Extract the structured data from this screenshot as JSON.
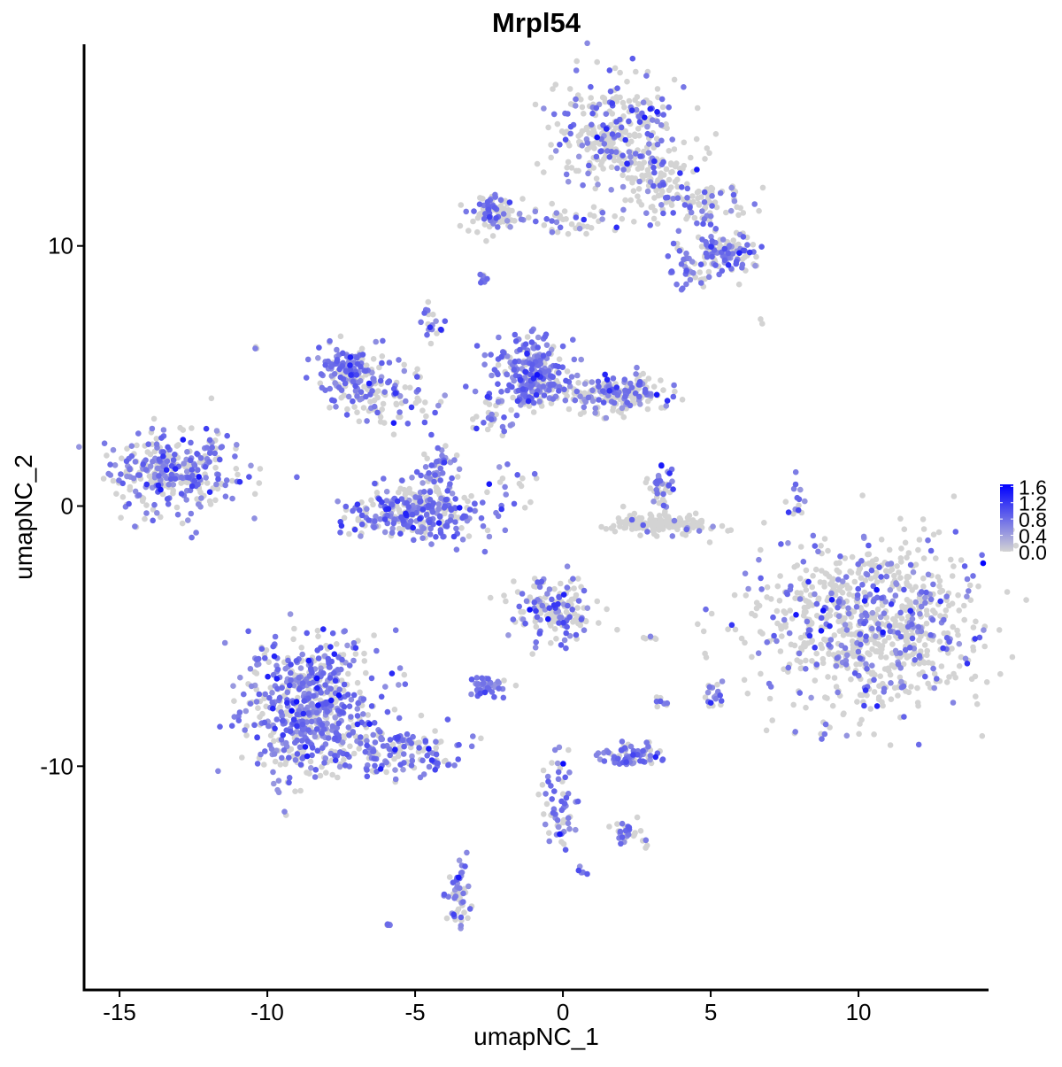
{
  "chart_data": {
    "type": "scatter",
    "title": "Mrpl54",
    "xlabel": "umapNC_1",
    "ylabel": "umapNC_2",
    "xlim": [
      -16.2,
      14.4
    ],
    "ylim": [
      -18.6,
      17.75
    ],
    "xticks": [
      -15,
      -10,
      -5,
      0,
      5,
      10
    ],
    "yticks": [
      -10,
      0,
      10
    ],
    "grid": false,
    "legend": {
      "position": "right",
      "type": "colorbar",
      "ticks": [
        "1.6",
        "1.2",
        "0.8",
        "0.4",
        "0.0"
      ],
      "range": [
        0,
        1.65
      ]
    },
    "colors": {
      "low": "#d3d3d3",
      "high": "#0000ff"
    },
    "clusters": [
      {
        "x": 1.9,
        "y": 14.3,
        "sx": 1.1,
        "sy": 1.0,
        "n": 320,
        "frac_expr": 0.35
      },
      {
        "x": 3.2,
        "y": 12.5,
        "sx": 0.8,
        "sy": 0.6,
        "n": 90,
        "frac_expr": 0.2
      },
      {
        "x": 4.9,
        "y": 11.6,
        "sx": 0.6,
        "sy": 0.4,
        "n": 70,
        "frac_expr": 0.4
      },
      {
        "x": 5.5,
        "y": 9.7,
        "sx": 0.5,
        "sy": 0.45,
        "n": 110,
        "frac_expr": 0.55
      },
      {
        "x": 4.3,
        "y": 9.2,
        "sx": 0.4,
        "sy": 0.4,
        "n": 40,
        "frac_expr": 0.6
      },
      {
        "x": -2.4,
        "y": 11.3,
        "sx": 0.5,
        "sy": 0.4,
        "n": 90,
        "frac_expr": 0.35
      },
      {
        "x": 0.3,
        "y": 11.0,
        "sx": 1.1,
        "sy": 0.3,
        "n": 50,
        "frac_expr": 0.3
      },
      {
        "x": -13.2,
        "y": 1.2,
        "sx": 1.1,
        "sy": 0.75,
        "n": 320,
        "frac_expr": 0.6
      },
      {
        "x": -11.7,
        "y": 2.4,
        "sx": 0.2,
        "sy": 0.3,
        "n": 12,
        "frac_expr": 0.3
      },
      {
        "x": -7.2,
        "y": 5.1,
        "sx": 0.6,
        "sy": 0.5,
        "n": 160,
        "frac_expr": 0.7
      },
      {
        "x": -5.8,
        "y": 4.2,
        "sx": 0.9,
        "sy": 0.5,
        "n": 80,
        "frac_expr": 0.4
      },
      {
        "x": -5.0,
        "y": -0.2,
        "sx": 1.2,
        "sy": 0.55,
        "n": 320,
        "frac_expr": 0.65
      },
      {
        "x": -4.2,
        "y": 1.4,
        "sx": 0.3,
        "sy": 0.6,
        "n": 50,
        "frac_expr": 0.7
      },
      {
        "x": -4.4,
        "y": 7.0,
        "sx": 0.2,
        "sy": 0.4,
        "n": 20,
        "frac_expr": 0.6
      },
      {
        "x": -1.1,
        "y": 5.0,
        "sx": 0.6,
        "sy": 0.7,
        "n": 260,
        "frac_expr": 0.7
      },
      {
        "x": 1.7,
        "y": 4.3,
        "sx": 0.9,
        "sy": 0.4,
        "n": 200,
        "frac_expr": 0.35
      },
      {
        "x": -2.3,
        "y": 3.2,
        "sx": 0.3,
        "sy": 0.6,
        "n": 25,
        "frac_expr": 0.6
      },
      {
        "x": -1.7,
        "y": 1.0,
        "sx": 0.5,
        "sy": 0.3,
        "n": 12,
        "frac_expr": 0.6
      },
      {
        "x": 3.3,
        "y": 0.7,
        "sx": 0.2,
        "sy": 0.4,
        "n": 40,
        "frac_expr": 0.6
      },
      {
        "x": 3.4,
        "y": -0.7,
        "sx": 0.9,
        "sy": 0.2,
        "n": 170,
        "frac_expr": 0.03
      },
      {
        "x": 10.4,
        "y": -4.5,
        "sx": 1.9,
        "sy": 1.6,
        "n": 850,
        "frac_expr": 0.3
      },
      {
        "x": -8.6,
        "y": -7.8,
        "sx": 1.1,
        "sy": 1.3,
        "n": 620,
        "frac_expr": 0.65
      },
      {
        "x": -5.6,
        "y": -9.4,
        "sx": 1.2,
        "sy": 0.5,
        "n": 150,
        "frac_expr": 0.6
      },
      {
        "x": -0.3,
        "y": -3.9,
        "sx": 0.7,
        "sy": 0.6,
        "n": 160,
        "frac_expr": 0.45
      },
      {
        "x": -2.6,
        "y": -6.9,
        "sx": 0.3,
        "sy": 0.2,
        "n": 40,
        "frac_expr": 0.8
      },
      {
        "x": 2.4,
        "y": -9.6,
        "sx": 0.5,
        "sy": 0.2,
        "n": 70,
        "frac_expr": 0.8
      },
      {
        "x": -3.5,
        "y": -15.0,
        "sx": 0.2,
        "sy": 0.6,
        "n": 50,
        "frac_expr": 0.7
      },
      {
        "x": -0.2,
        "y": -11.6,
        "sx": 0.3,
        "sy": 0.9,
        "n": 60,
        "frac_expr": 0.6
      },
      {
        "x": 2.2,
        "y": -12.6,
        "sx": 0.3,
        "sy": 0.3,
        "n": 30,
        "frac_expr": 0.5
      },
      {
        "x": 5.1,
        "y": -7.3,
        "sx": 0.15,
        "sy": 0.3,
        "n": 20,
        "frac_expr": 0.7
      },
      {
        "x": 7.9,
        "y": 0.2,
        "sx": 0.15,
        "sy": 0.5,
        "n": 15,
        "frac_expr": 0.6
      },
      {
        "x": -10.4,
        "y": 6.1,
        "sx": 0.05,
        "sy": 0.05,
        "n": 3,
        "frac_expr": 0.6
      },
      {
        "x": 6.7,
        "y": 7.1,
        "sx": 0.05,
        "sy": 0.05,
        "n": 2,
        "frac_expr": 0.0
      },
      {
        "x": -5.9,
        "y": -16.1,
        "sx": 0.1,
        "sy": 0.05,
        "n": 5,
        "frac_expr": 0.8
      },
      {
        "x": -2.7,
        "y": 8.7,
        "sx": 0.1,
        "sy": 0.15,
        "n": 8,
        "frac_expr": 0.6
      },
      {
        "x": 0.7,
        "y": -14.0,
        "sx": 0.1,
        "sy": 0.1,
        "n": 5,
        "frac_expr": 0.8
      },
      {
        "x": 3.3,
        "y": -7.6,
        "sx": 0.2,
        "sy": 0.15,
        "n": 8,
        "frac_expr": 0.7
      },
      {
        "x": 2.8,
        "y": -5.1,
        "sx": 0.2,
        "sy": 0.05,
        "n": 6,
        "frac_expr": 0.2
      }
    ]
  }
}
